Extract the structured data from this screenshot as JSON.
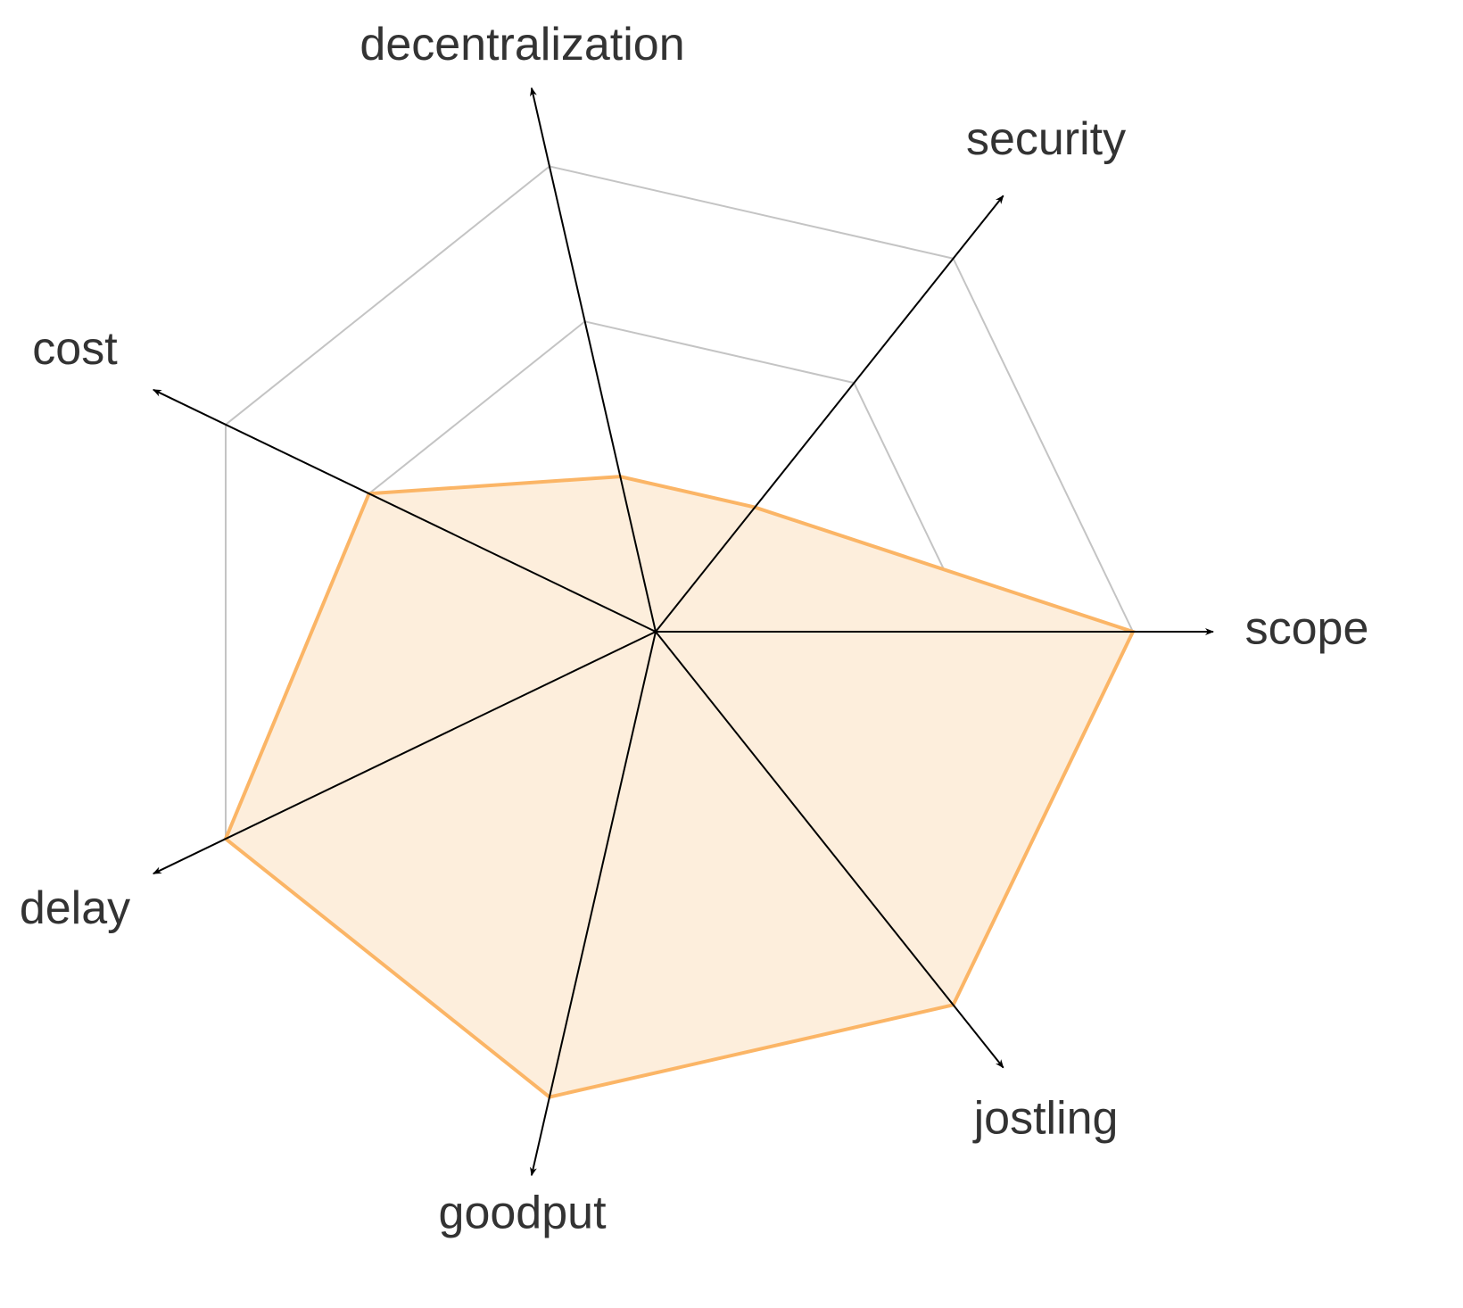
{
  "chart_data": {
    "type": "radar",
    "categories": [
      "scope",
      "security",
      "decentralization",
      "cost",
      "delay",
      "goodput",
      "jostling"
    ],
    "values": [
      3,
      1,
      1,
      2,
      3,
      3,
      3
    ],
    "rlim": [
      0,
      3
    ],
    "rticks": [
      1,
      2,
      3
    ],
    "color": "#fbb566",
    "fill": "#fdeedc",
    "grid": true,
    "grid_color": "#c4c4c4"
  }
}
